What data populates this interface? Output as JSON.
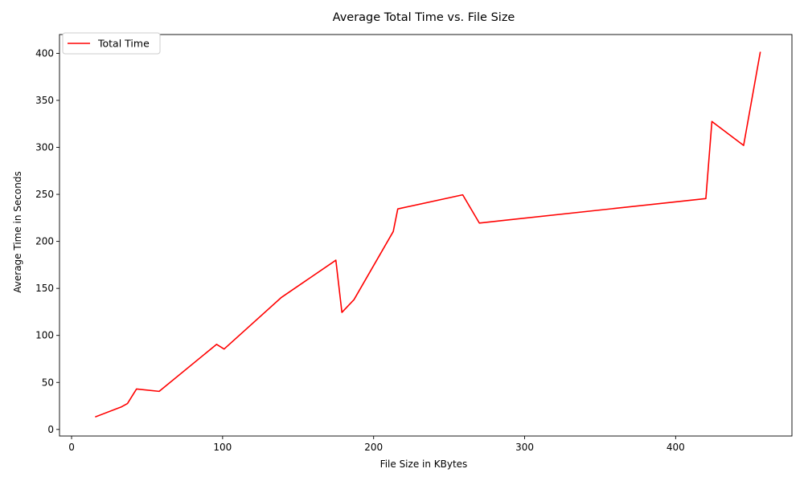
{
  "chart_data": {
    "type": "line",
    "title": "Average Total Time vs. File Size",
    "xlabel": "File Size in KBytes",
    "ylabel": "Average Time in Seconds",
    "xlim": [
      -8,
      477
    ],
    "ylim": [
      -7,
      420
    ],
    "xticks": [
      0,
      100,
      200,
      300,
      400
    ],
    "yticks": [
      0,
      50,
      100,
      150,
      200,
      250,
      300,
      350,
      400
    ],
    "grid": false,
    "legend": {
      "position": "top-left",
      "entries": [
        "Total Time"
      ]
    },
    "series": [
      {
        "name": "Total Time",
        "color": "#ff0000",
        "x": [
          16,
          33,
          37,
          43,
          58,
          96,
          101,
          139,
          175,
          179,
          187,
          213,
          216,
          259,
          270,
          420,
          424,
          445,
          456
        ],
        "y": [
          13.5,
          24,
          27.5,
          43,
          40.5,
          90.5,
          85.5,
          140.5,
          180,
          124.5,
          138,
          210.5,
          234.5,
          249.5,
          219.5,
          245.5,
          327.5,
          302,
          401
        ]
      }
    ]
  }
}
